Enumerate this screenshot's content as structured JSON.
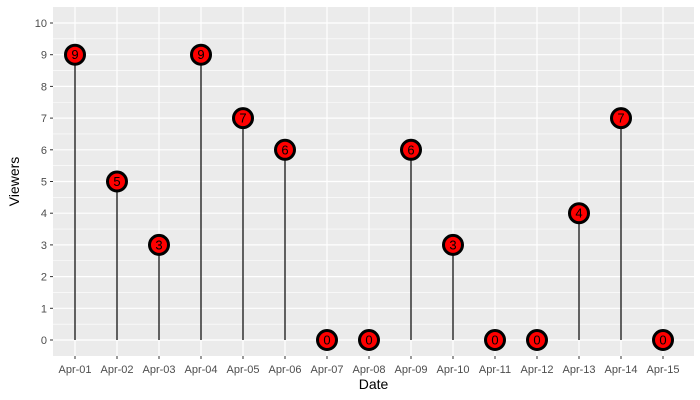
{
  "chart_data": {
    "type": "lollipop",
    "x": [
      "Apr-01",
      "Apr-02",
      "Apr-03",
      "Apr-04",
      "Apr-05",
      "Apr-06",
      "Apr-07",
      "Apr-08",
      "Apr-09",
      "Apr-10",
      "Apr-11",
      "Apr-12",
      "Apr-13",
      "Apr-14",
      "Apr-15"
    ],
    "values": [
      9,
      5,
      3,
      9,
      7,
      6,
      0,
      0,
      6,
      3,
      0,
      0,
      4,
      7,
      0
    ],
    "xlabel": "Date",
    "ylabel": "Viewers",
    "ylim": [
      0,
      10
    ],
    "yticks": [
      0,
      1,
      2,
      3,
      4,
      5,
      6,
      7,
      8,
      9,
      10
    ],
    "grid": true,
    "colors": {
      "panel_background": "#ebebeb",
      "grid_major": "#ffffff",
      "point_fill": "#ff0000",
      "point_stroke": "#000000",
      "stem": "#000000"
    }
  }
}
